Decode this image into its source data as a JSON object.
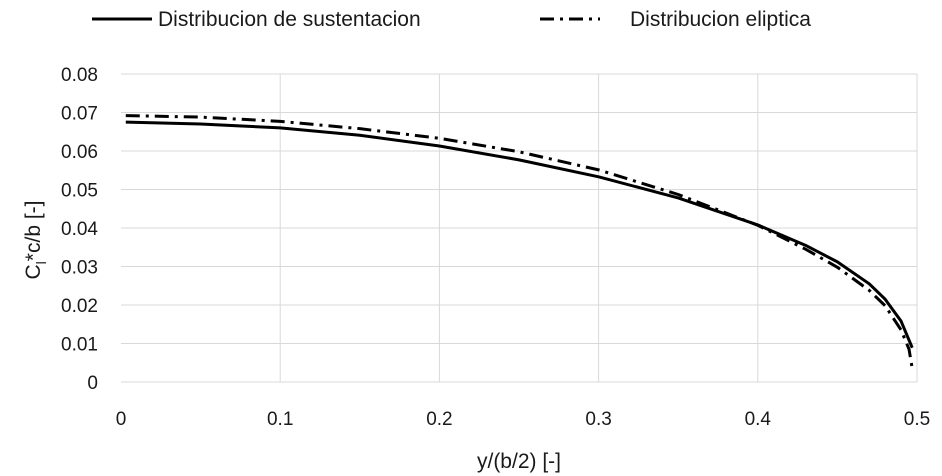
{
  "chart_data": {
    "type": "line",
    "title": "",
    "xlabel": "y/(b/2) [-]",
    "ylabel": {
      "main": "C",
      "sub": "l",
      "rest": "*c/b [-]"
    },
    "xlim": [
      0,
      0.5
    ],
    "ylim": [
      0,
      0.08
    ],
    "xticks": [
      "0",
      "0.1",
      "0.2",
      "0.3",
      "0.4",
      "0.5"
    ],
    "yticks": [
      "0",
      "0.01",
      "0.02",
      "0.03",
      "0.04",
      "0.05",
      "0.06",
      "0.07",
      "0.08"
    ],
    "grid": true,
    "legend": "top-center",
    "series": [
      {
        "name": "Distribucion de sustentacion",
        "style": "solid",
        "color": "#000000",
        "x": [
          0.003,
          0.05,
          0.1,
          0.15,
          0.2,
          0.25,
          0.3,
          0.35,
          0.4,
          0.43,
          0.45,
          0.47,
          0.48,
          0.49,
          0.497
        ],
        "y": [
          0.0675,
          0.067,
          0.066,
          0.0641,
          0.0613,
          0.0577,
          0.0533,
          0.0478,
          0.0408,
          0.0355,
          0.0312,
          0.0255,
          0.0215,
          0.0158,
          0.0089
        ]
      },
      {
        "name": "Distribucion eliptica",
        "style": "dashdot",
        "color": "#000000",
        "x": [
          0.003,
          0.05,
          0.1,
          0.15,
          0.2,
          0.25,
          0.3,
          0.35,
          0.4,
          0.43,
          0.45,
          0.47,
          0.48,
          0.49,
          0.495,
          0.497
        ],
        "y": [
          0.0692,
          0.0688,
          0.0677,
          0.0658,
          0.0633,
          0.0598,
          0.0551,
          0.0487,
          0.0407,
          0.0345,
          0.0298,
          0.0238,
          0.0198,
          0.0135,
          0.0085,
          0.0035
        ]
      }
    ]
  }
}
